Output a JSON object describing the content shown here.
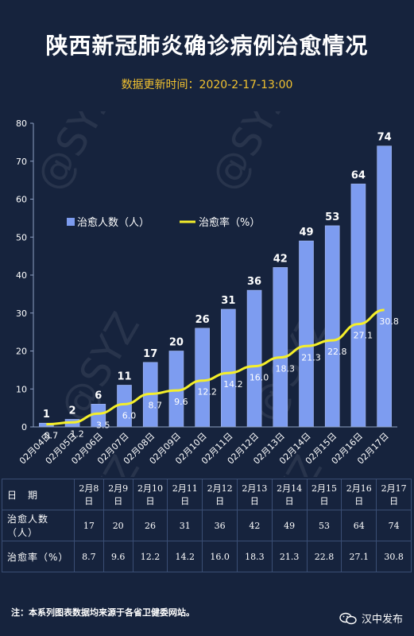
{
  "header": {
    "title": "陕西新冠肺炎确诊病例治愈情况",
    "subtitle": "数据更新时间：2020-2-17-13:00"
  },
  "chart_data": {
    "type": "bar",
    "categories": [
      "02月04日",
      "02月05日",
      "02月06日",
      "02月07日",
      "02月08日",
      "02月09日",
      "02月10日",
      "02月11日",
      "02月12日",
      "02月13日",
      "02月14日",
      "02月15日",
      "02月16日",
      "02月17日"
    ],
    "series": [
      {
        "name": "治愈人数（人）",
        "type": "bar",
        "values": [
          1,
          2,
          6,
          11,
          17,
          20,
          26,
          31,
          36,
          42,
          49,
          53,
          64,
          74
        ]
      },
      {
        "name": "治愈率（%）",
        "type": "line",
        "values": [
          0.7,
          1.2,
          3.5,
          6.0,
          8.7,
          9.6,
          12.2,
          14.2,
          16.0,
          18.3,
          21.3,
          22.8,
          27.1,
          30.8
        ]
      }
    ],
    "y_ticks": [
      0,
      10,
      20,
      30,
      40,
      50,
      60,
      70,
      80
    ],
    "ylim": [
      0,
      80
    ],
    "legend_position": "top-left",
    "colors": {
      "bar": "#7d9cf0",
      "line": "#f5ef2a"
    }
  },
  "table": {
    "header_label": "日　期",
    "dates": [
      "2月8日",
      "2月9日",
      "2月10日",
      "2月11日",
      "2月12日",
      "2月13日",
      "2月14日",
      "2月15日",
      "2月16日",
      "2月17日"
    ],
    "rows": [
      {
        "label": "治愈人数（人）",
        "values": [
          "17",
          "20",
          "26",
          "31",
          "36",
          "42",
          "49",
          "53",
          "64",
          "74"
        ]
      },
      {
        "label": "治愈率（%）",
        "values": [
          "8.7",
          "9.6",
          "12.2",
          "14.2",
          "16.0",
          "18.3",
          "21.3",
          "22.8",
          "27.1",
          "30.8"
        ]
      }
    ]
  },
  "watermark": "@SYZ",
  "footer": {
    "note": "注：本系列图表数据均来源于各省卫健委网站。",
    "brand": "汉中发布",
    "brand_icon": "wechat-icon"
  }
}
